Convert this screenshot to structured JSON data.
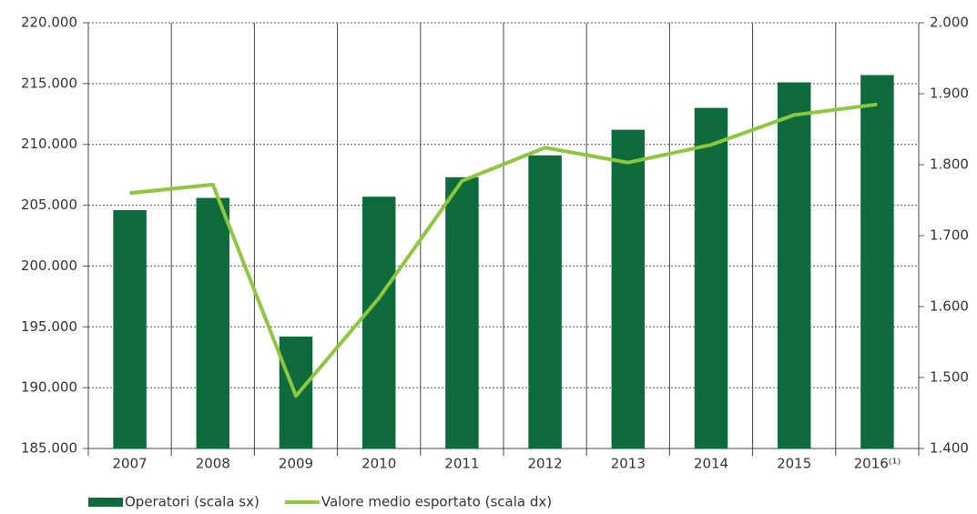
{
  "chart_data": {
    "type": "bar_line",
    "categories": [
      "2007",
      "2008",
      "2009",
      "2010",
      "2011",
      "2012",
      "2013",
      "2014",
      "2015",
      "2016⁽¹⁾"
    ],
    "series": [
      {
        "name": "Operatori (scala sx)",
        "type": "bar",
        "color": "#0e6b3b",
        "axis": "y",
        "values": [
          204600,
          205600,
          194200,
          205700,
          207300,
          209100,
          211200,
          213000,
          215100,
          215700
        ]
      },
      {
        "name": "Valore medio esportato (scala dx)",
        "type": "line",
        "color": "#8dc63f",
        "axis": "y2",
        "values": [
          1760,
          1772,
          1474,
          1612,
          1777,
          1824,
          1803,
          1828,
          1870,
          1885
        ]
      }
    ],
    "ylim": [
      185000,
      220000
    ],
    "yticks": [
      {
        "value": 185000,
        "label": "185.000"
      },
      {
        "value": 190000,
        "label": "190.000"
      },
      {
        "value": 195000,
        "label": "195.000"
      },
      {
        "value": 200000,
        "label": "200.000"
      },
      {
        "value": 205000,
        "label": "205.000"
      },
      {
        "value": 210000,
        "label": "210.000"
      },
      {
        "value": 215000,
        "label": "215.000"
      },
      {
        "value": 220000,
        "label": "220.000"
      }
    ],
    "y2lim": [
      1400,
      2000
    ],
    "y2ticks": [
      {
        "value": 1400,
        "label": "1.400"
      },
      {
        "value": 1500,
        "label": "1.500"
      },
      {
        "value": 1600,
        "label": "1.600"
      },
      {
        "value": 1700,
        "label": "1.700"
      },
      {
        "value": 1800,
        "label": "1.800"
      },
      {
        "value": 1900,
        "label": "1.900"
      },
      {
        "value": 2000,
        "label": "2.000"
      }
    ],
    "grid": true,
    "legend": "bottom-left"
  }
}
